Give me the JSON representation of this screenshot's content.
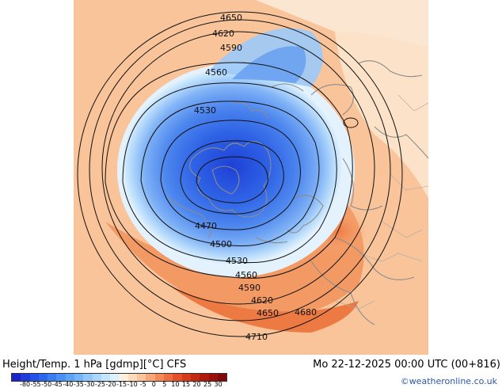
{
  "map": {
    "contours": [
      {
        "label": "4650"
      },
      {
        "label": "4620"
      },
      {
        "label": "4590"
      },
      {
        "label": "4560"
      },
      {
        "label": "4530"
      },
      {
        "label": "4470"
      },
      {
        "label": "4500"
      },
      {
        "label": "4530"
      },
      {
        "label": "4560"
      },
      {
        "label": "4590"
      },
      {
        "label": "4620"
      },
      {
        "label": "4650"
      },
      {
        "label": "4680"
      },
      {
        "label": "4710"
      }
    ]
  },
  "footer": {
    "title": "Height/Temp. 1 hPa [gdmp][°C] CFS",
    "datetime": "Mo 22-12-2025 00:00 UTC (00+816)",
    "credit": "©weatheronline.co.uk"
  },
  "colorbar": {
    "labels": [
      "-80",
      "-55",
      "-50",
      "-45",
      "-40",
      "-35",
      "-30",
      "-25",
      "-20",
      "-15",
      "-10",
      "-5",
      "0",
      "5",
      "10",
      "15",
      "20",
      "25",
      "30"
    ],
    "colors": [
      "#1a24c8",
      "#1e3cd8",
      "#2452e6",
      "#2c66ee",
      "#3a7cf2",
      "#4a90f4",
      "#5ea4f6",
      "#76b6f8",
      "#90c8fa",
      "#aad8fc",
      "#c4e6fd",
      "#dcf1fe",
      "#fef0dc",
      "#fddcbc",
      "#fcc49a",
      "#f8a878",
      "#f48a58",
      "#ee6c40",
      "#e4502a",
      "#d63a1c",
      "#c42812",
      "#b0180c",
      "#98100a",
      "#800806"
    ]
  }
}
